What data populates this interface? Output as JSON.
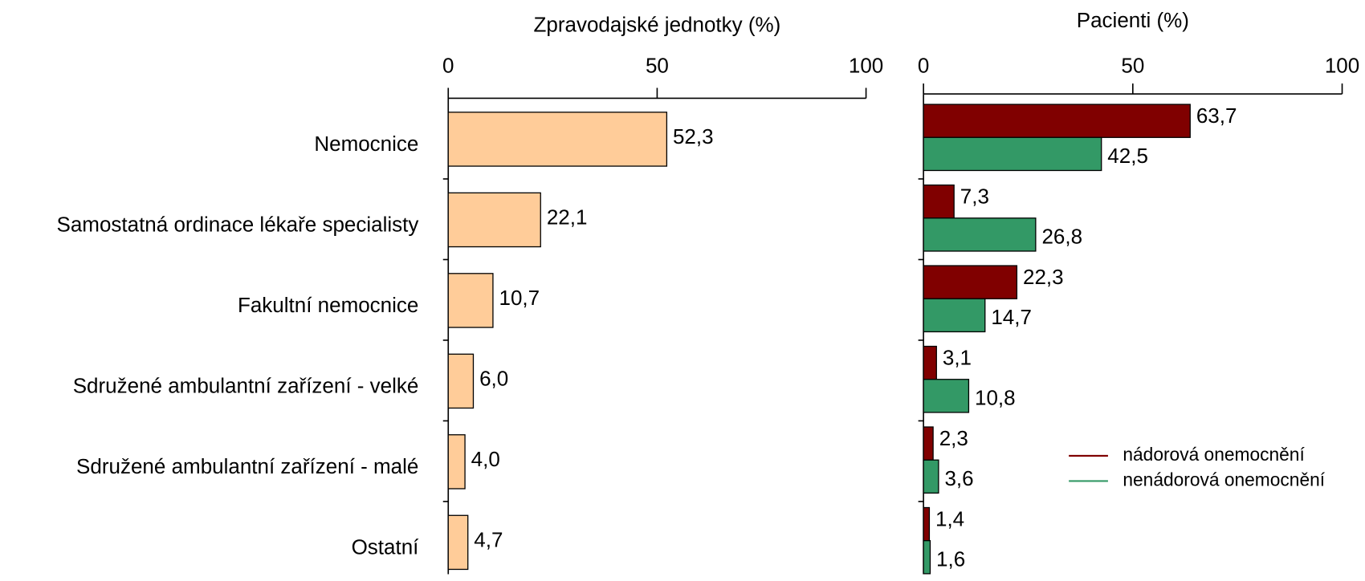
{
  "chart_data": [
    {
      "type": "bar",
      "orientation": "horizontal",
      "xlabel": "Zpravodajské jednotky (%)",
      "categories": [
        "Nemocnice",
        "Samostatná ordinace lékaře specialisty",
        "Fakultní nemocnice",
        "Sdružené ambulantní zařízení - velké",
        "Sdružené ambulantní zařízení - malé",
        "Ostatní"
      ],
      "values": [
        52.3,
        22.1,
        10.7,
        6.0,
        4.0,
        4.7
      ],
      "value_labels": [
        "52,3",
        "22,1",
        "10,7",
        "6,0",
        "4,0",
        "4,7"
      ],
      "color": "#ffcc99",
      "xlim": [
        0,
        100
      ],
      "xticks": [
        0,
        50,
        100
      ]
    },
    {
      "type": "bar",
      "orientation": "horizontal",
      "xlabel": "Pacienti (%)",
      "series": [
        {
          "name": "nádorová onemocnění",
          "color": "#800000",
          "values": [
            63.7,
            7.3,
            22.3,
            3.1,
            2.3,
            1.4
          ],
          "value_labels": [
            "63,7",
            "7,3",
            "22,3",
            "3,1",
            "2,3",
            "1,4"
          ]
        },
        {
          "name": "nenádorová onemocnění",
          "color": "#339966",
          "values": [
            42.5,
            26.8,
            14.7,
            10.8,
            3.6,
            1.6
          ],
          "value_labels": [
            "42,5",
            "26,8",
            "14,7",
            "10,8",
            "3,6",
            "1,6"
          ]
        }
      ],
      "xlim": [
        0,
        100
      ],
      "xticks": [
        0,
        50,
        100
      ],
      "legend": "lower right"
    }
  ]
}
